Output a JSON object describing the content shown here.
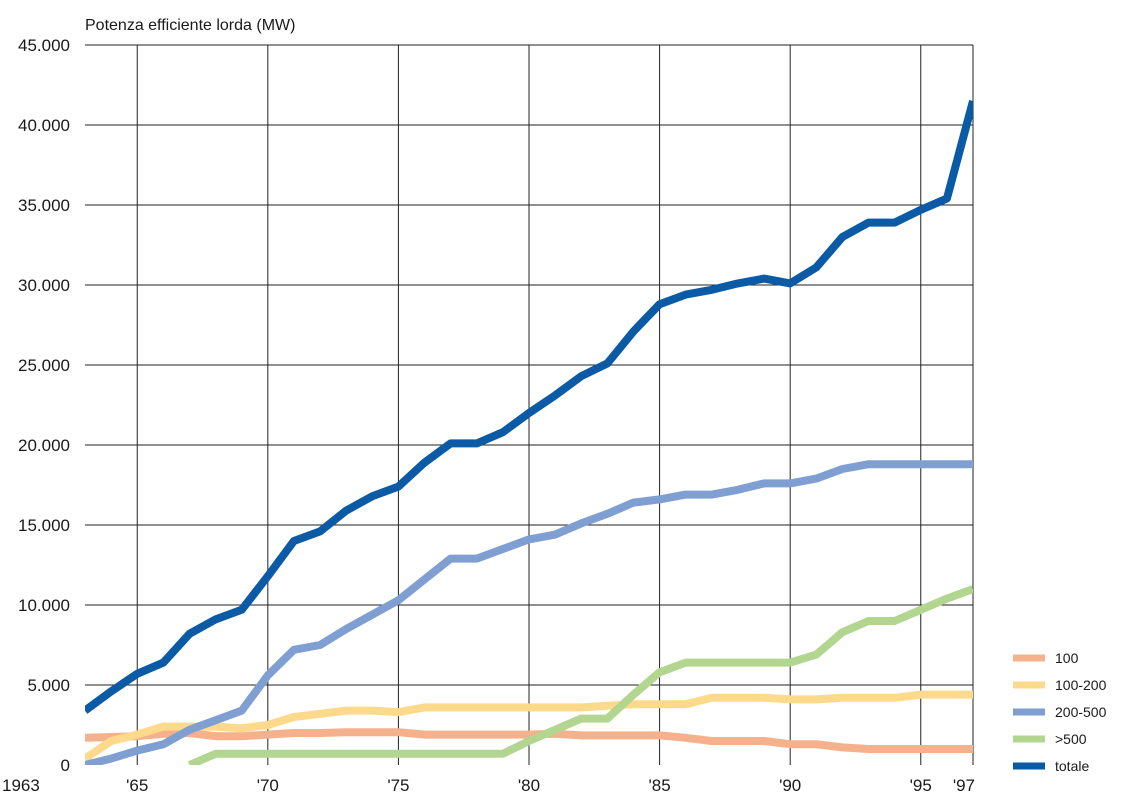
{
  "chart_data": {
    "type": "line",
    "title": "",
    "ylabel": "Potenza efficiente lorda (MW)",
    "xlabel": "",
    "xlim": [
      1963,
      1997
    ],
    "ylim": [
      0,
      45000
    ],
    "grid": true,
    "legend_position": "bottom-right",
    "y_ticks": [
      {
        "value": 0,
        "label": "0"
      },
      {
        "value": 5000,
        "label": "5.000"
      },
      {
        "value": 10000,
        "label": "10.000"
      },
      {
        "value": 15000,
        "label": "15.000"
      },
      {
        "value": 20000,
        "label": "20.000"
      },
      {
        "value": 25000,
        "label": "25.000"
      },
      {
        "value": 30000,
        "label": "30.000"
      },
      {
        "value": 35000,
        "label": "35.000"
      },
      {
        "value": 40000,
        "label": "40.000"
      },
      {
        "value": 45000,
        "label": "45.000"
      }
    ],
    "x_ticks": [
      {
        "value": 1963,
        "label": "1963"
      },
      {
        "value": 1965,
        "label": "'65"
      },
      {
        "value": 1970,
        "label": "'70"
      },
      {
        "value": 1975,
        "label": "'75"
      },
      {
        "value": 1980,
        "label": "'80"
      },
      {
        "value": 1985,
        "label": "'85"
      },
      {
        "value": 1990,
        "label": "'90"
      },
      {
        "value": 1995,
        "label": "'95"
      },
      {
        "value": 1997,
        "label": "'97"
      }
    ],
    "series": [
      {
        "name": "100",
        "color": "#f5b08c",
        "x": [
          1963,
          1964,
          1965,
          1966,
          1967,
          1968,
          1969,
          1970,
          1971,
          1972,
          1973,
          1974,
          1975,
          1976,
          1977,
          1978,
          1979,
          1980,
          1981,
          1982,
          1983,
          1984,
          1985,
          1986,
          1987,
          1988,
          1989,
          1990,
          1991,
          1992,
          1993,
          1994,
          1995,
          1996,
          1997
        ],
        "values": [
          1700,
          1750,
          1800,
          1950,
          2000,
          1800,
          1800,
          1900,
          2000,
          2000,
          2050,
          2050,
          2050,
          1900,
          1900,
          1900,
          1900,
          1900,
          1950,
          1850,
          1850,
          1850,
          1850,
          1700,
          1500,
          1500,
          1500,
          1300,
          1300,
          1100,
          1000,
          1000,
          1000,
          1000,
          1000
        ]
      },
      {
        "name": "100-200",
        "color": "#fdd98c",
        "x": [
          1963,
          1964,
          1965,
          1966,
          1967,
          1968,
          1969,
          1970,
          1971,
          1972,
          1973,
          1974,
          1975,
          1976,
          1977,
          1978,
          1979,
          1980,
          1981,
          1982,
          1983,
          1984,
          1985,
          1986,
          1987,
          1988,
          1989,
          1990,
          1991,
          1992,
          1993,
          1994,
          1995,
          1996,
          1997
        ],
        "values": [
          400,
          1500,
          1900,
          2400,
          2400,
          2400,
          2300,
          2500,
          3000,
          3200,
          3400,
          3400,
          3300,
          3600,
          3600,
          3600,
          3600,
          3600,
          3600,
          3600,
          3700,
          3800,
          3800,
          3800,
          4200,
          4200,
          4200,
          4100,
          4100,
          4200,
          4200,
          4200,
          4400,
          4400,
          4400
        ]
      },
      {
        "name": "200-500",
        "color": "#7f9fd3",
        "x": [
          1963,
          1964,
          1965,
          1966,
          1967,
          1968,
          1969,
          1970,
          1971,
          1972,
          1973,
          1974,
          1975,
          1976,
          1977,
          1978,
          1979,
          1980,
          1981,
          1982,
          1983,
          1984,
          1985,
          1986,
          1987,
          1988,
          1989,
          1990,
          1991,
          1992,
          1993,
          1994,
          1995,
          1996,
          1997
        ],
        "values": [
          0,
          400,
          900,
          1300,
          2200,
          2800,
          3400,
          5600,
          7200,
          7500,
          8500,
          9400,
          10300,
          11600,
          12900,
          12900,
          13500,
          14100,
          14400,
          15100,
          15700,
          16400,
          16600,
          16900,
          16900,
          17200,
          17600,
          17600,
          17900,
          18500,
          18800,
          18800,
          18800,
          18800,
          18800
        ]
      },
      {
        "name": ">500",
        "color": "#b2d68f",
        "x": [
          1967,
          1968,
          1969,
          1970,
          1971,
          1972,
          1973,
          1974,
          1975,
          1976,
          1977,
          1978,
          1979,
          1980,
          1981,
          1982,
          1983,
          1984,
          1985,
          1986,
          1987,
          1988,
          1989,
          1990,
          1991,
          1992,
          1993,
          1994,
          1995,
          1996,
          1997
        ],
        "values": [
          0,
          700,
          700,
          700,
          700,
          700,
          700,
          700,
          700,
          700,
          700,
          700,
          700,
          1500,
          2200,
          2900,
          2900,
          4400,
          5800,
          6400,
          6400,
          6400,
          6400,
          6400,
          6900,
          8300,
          9000,
          9000,
          9700,
          10400,
          11000
        ]
      },
      {
        "name": "totale",
        "color": "#0a5aa5",
        "x": [
          1963,
          1964,
          1965,
          1966,
          1967,
          1968,
          1969,
          1970,
          1971,
          1972,
          1973,
          1974,
          1975,
          1976,
          1977,
          1978,
          1979,
          1980,
          1981,
          1982,
          1983,
          1984,
          1985,
          1986,
          1987,
          1988,
          1989,
          1990,
          1991,
          1992,
          1993,
          1994,
          1995,
          1996,
          1997
        ],
        "values": [
          3400,
          4600,
          5700,
          6400,
          8200,
          9100,
          9700,
          11800,
          14000,
          14600,
          15900,
          16800,
          17400,
          18900,
          20100,
          20100,
          20800,
          22000,
          23100,
          24300,
          25100,
          27100,
          28800,
          29400,
          29700,
          30100,
          30400,
          30100,
          31100,
          33000,
          33900,
          33900,
          34700,
          35400,
          41500
        ]
      }
    ]
  }
}
